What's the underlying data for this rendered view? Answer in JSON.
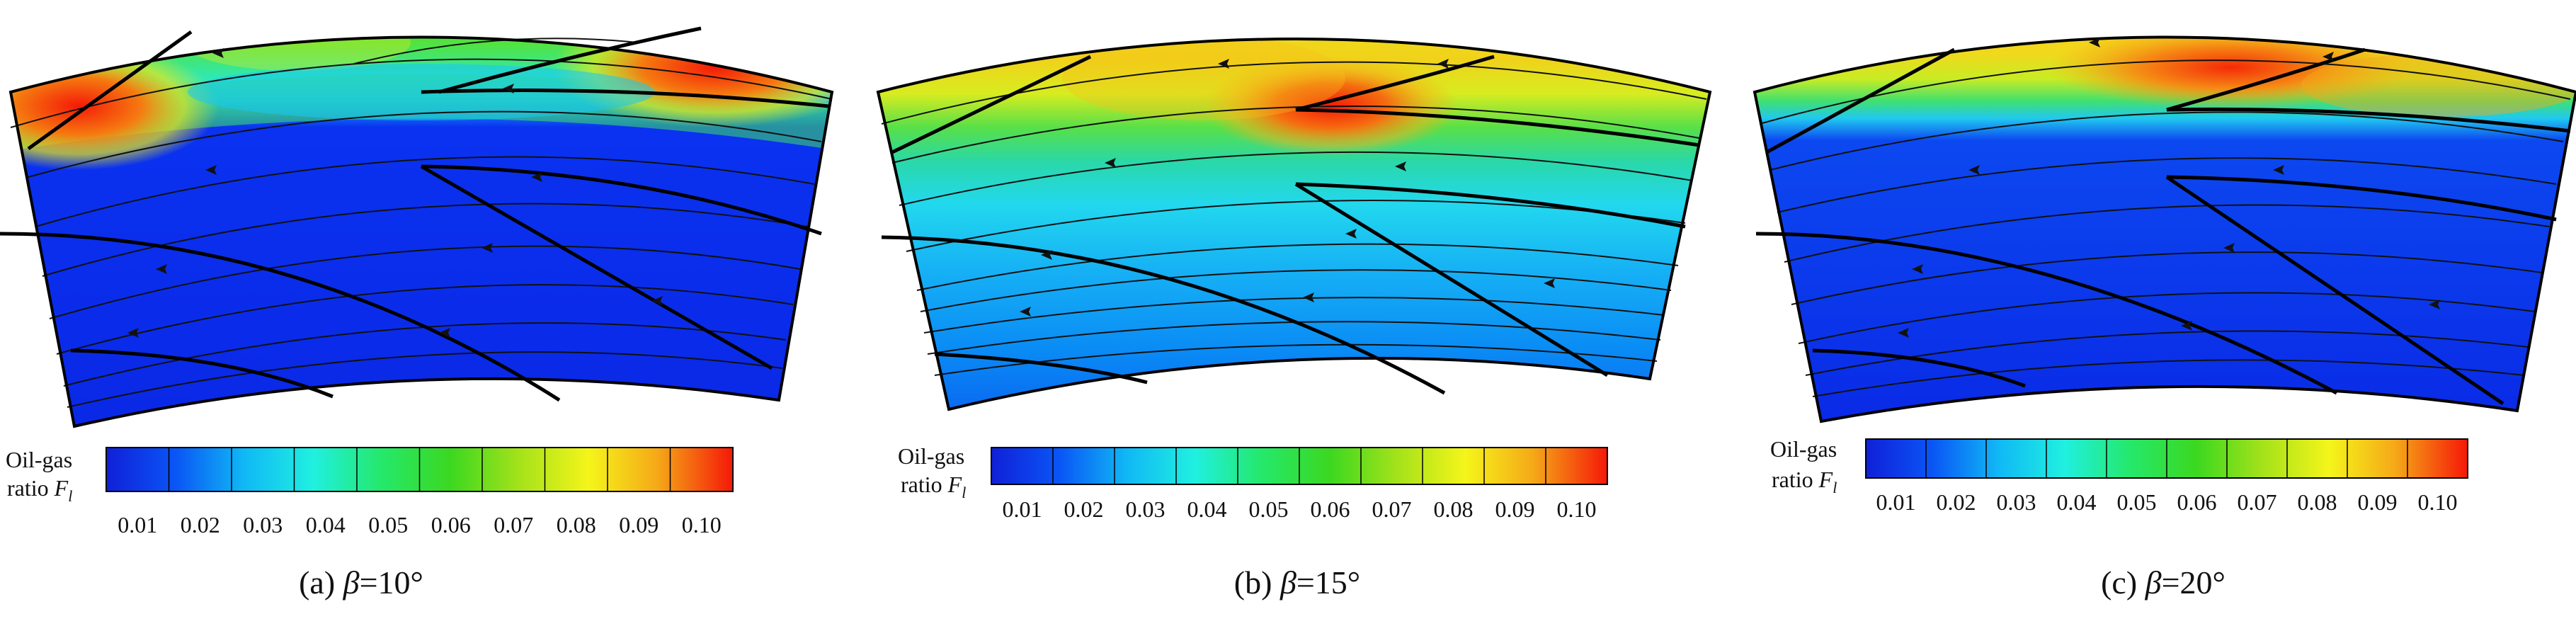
{
  "colorbar": {
    "label_line1": "Oil-gas",
    "label_line2": "ratio ",
    "symbol": "F",
    "subscript": "l",
    "ticks": [
      "0.01",
      "0.02",
      "0.03",
      "0.04",
      "0.05",
      "0.06",
      "0.07",
      "0.08",
      "0.09",
      "0.10"
    ],
    "gradient_colors": [
      "#1020d8",
      "#0a55f5",
      "#10b8f5",
      "#20f0e0",
      "#25e86a",
      "#3cd820",
      "#a5e21a",
      "#f5f51a",
      "#f5a818",
      "#f51808"
    ]
  },
  "panels": [
    {
      "id": "a",
      "caption_prefix": "(a) ",
      "caption_symbol": "β",
      "caption_value": "=10°",
      "field_levels": {
        "top_band_peak": 0.1,
        "mid_region": 0.01,
        "bottom_region": 0.01
      }
    },
    {
      "id": "b",
      "caption_prefix": "(b) ",
      "caption_symbol": "β",
      "caption_value": "=15°",
      "field_levels": {
        "top_band_peak": 0.09,
        "mid_region": 0.025,
        "bottom_region": 0.015
      }
    },
    {
      "id": "c",
      "caption_prefix": "(c) ",
      "caption_symbol": "β",
      "caption_value": "=20°",
      "field_levels": {
        "top_band_peak": 0.095,
        "mid_region": 0.01,
        "bottom_region": 0.01
      }
    }
  ]
}
